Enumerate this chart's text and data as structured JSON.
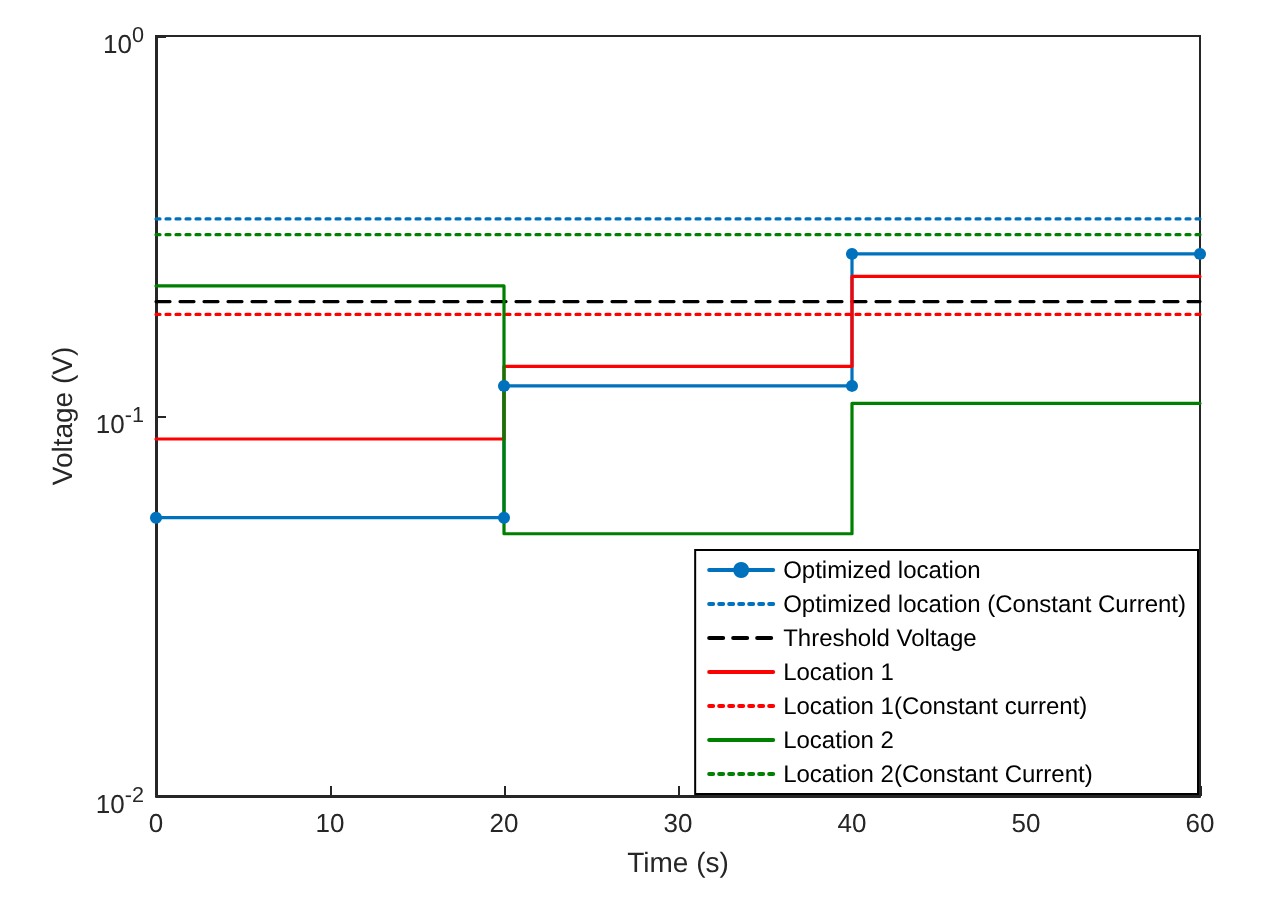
{
  "chart_data": {
    "type": "line",
    "xlabel": "Time (s)",
    "ylabel": "Voltage (V)",
    "log": "y",
    "xlim": [
      0,
      60
    ],
    "xticks": [
      0,
      10,
      20,
      30,
      40,
      50,
      60
    ],
    "ylim": [
      0.01,
      1
    ],
    "yticks": [
      {
        "value": 0.01,
        "label": "10$^{-2}$"
      },
      {
        "value": 0.1,
        "label": "10$^{-1}$"
      },
      {
        "value": 1,
        "label": "10$^{0}$"
      }
    ],
    "grid": false,
    "legend": "bottom right",
    "series": [
      {
        "name": "Optimized location",
        "color": "#0072bd",
        "marker": "circle",
        "line_style": "solid",
        "x": [
          0,
          20,
          20,
          40,
          40,
          60
        ],
        "values": [
          0.054,
          0.054,
          0.12,
          0.12,
          0.267,
          0.267
        ]
      },
      {
        "name": "Optimized location (Constant Current)",
        "color": "#0072bd",
        "marker": "none",
        "line_style": "dotted",
        "x": [
          0,
          60
        ],
        "values": [
          0.33,
          0.33
        ]
      },
      {
        "name": "Threshold Voltage",
        "color": "#000000",
        "marker": "none",
        "line_style": "dashed",
        "x": [
          0,
          60
        ],
        "values": [
          0.2,
          0.2
        ]
      },
      {
        "name": "Location 1",
        "color": "#ff0000",
        "marker": "none",
        "line_style": "solid",
        "x": [
          0,
          20,
          20,
          40,
          40,
          60
        ],
        "values": [
          0.087,
          0.087,
          0.135,
          0.135,
          0.233,
          0.233
        ]
      },
      {
        "name": "Location 1(Constant current)",
        "color": "#ff0000",
        "marker": "none",
        "line_style": "dotted",
        "x": [
          0,
          60
        ],
        "values": [
          0.185,
          0.185
        ]
      },
      {
        "name": "Location 2",
        "color": "#008000",
        "marker": "none",
        "line_style": "solid",
        "x": [
          0,
          20,
          20,
          40,
          40,
          60
        ],
        "values": [
          0.22,
          0.22,
          0.049,
          0.049,
          0.108,
          0.108
        ]
      },
      {
        "name": "Location 2(Constant Current)",
        "color": "#008000",
        "marker": "none",
        "line_style": "dotted",
        "x": [
          0,
          60
        ],
        "values": [
          0.3,
          0.3
        ]
      }
    ]
  }
}
